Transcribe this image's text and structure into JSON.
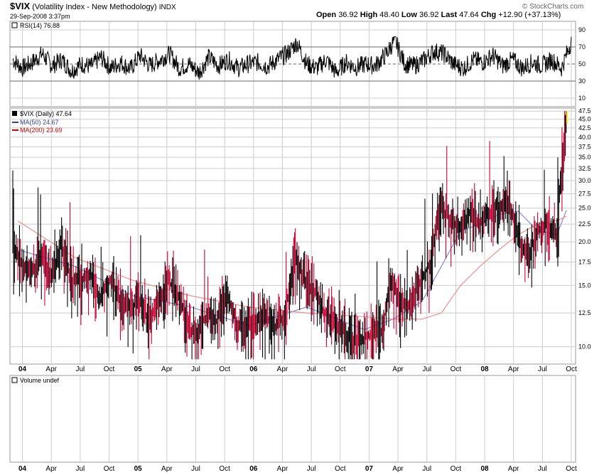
{
  "header": {
    "symbol": "$VIX",
    "name": "(Volatility Index - New Methodology)",
    "exchange": "INDX",
    "date": "29-Sep-2008 3:37pm",
    "open_label": "Open",
    "open": "36.92",
    "high_label": "High",
    "high": "48.40",
    "low_label": "Low",
    "low": "36.92",
    "last_label": "Last",
    "last": "47.64",
    "chg_label": "Chg",
    "chg": "+12.90 (+37.13%)",
    "brand": "© StockCharts.com"
  },
  "colors": {
    "price_up": "#000000",
    "price_down": "#cc0033",
    "ma50": "#8888cc",
    "ma200": "#ee9090",
    "rsi": "#000000",
    "last_bar": "#ffee00",
    "grid": "#cccccc"
  },
  "rsi_panel": {
    "label": "RSI(14) 76.88",
    "ticks": [
      "90",
      "70",
      "50",
      "30",
      "10"
    ]
  },
  "price_panel": {
    "legend_main": "$VIX (Daily) 47.64",
    "legend_ma50": "MA(50) 24.67",
    "legend_ma200": "MA(200) 23.69",
    "ticks": [
      "47.5",
      "45.0",
      "42.5",
      "40.0",
      "37.5",
      "35.0",
      "32.5",
      "30.0",
      "27.5",
      "25.0",
      "22.5",
      "20.0",
      "17.5",
      "15.0",
      "12.5",
      "10.0"
    ]
  },
  "volume_panel": {
    "label": "Volume undef"
  },
  "x_axis": {
    "labels": [
      "04",
      "Apr",
      "Jul",
      "Oct",
      "05",
      "Apr",
      "Jul",
      "Oct",
      "06",
      "Apr",
      "Jul",
      "Oct",
      "07",
      "Apr",
      "Jul",
      "Oct",
      "08",
      "Apr",
      "Jul",
      "Oct"
    ],
    "bold": [
      true,
      false,
      false,
      false,
      true,
      false,
      false,
      false,
      true,
      false,
      false,
      false,
      true,
      false,
      false,
      false,
      true,
      false,
      false,
      false
    ]
  },
  "chart_data": [
    {
      "type": "line",
      "panel": "rsi",
      "title": "RSI(14) 76.88",
      "ylim": [
        0,
        100
      ],
      "reference_lines": [
        30,
        50,
        70
      ],
      "series": [
        {
          "name": "RSI(14)",
          "x": [
            "2003-12",
            "2004-01",
            "2004-02",
            "2004-03",
            "2004-04",
            "2004-05",
            "2004-06",
            "2004-07",
            "2004-08",
            "2004-09",
            "2004-10",
            "2004-11",
            "2004-12",
            "2005-01",
            "2005-02",
            "2005-03",
            "2005-04",
            "2005-05",
            "2005-06",
            "2005-07",
            "2005-08",
            "2005-09",
            "2005-10",
            "2005-11",
            "2005-12",
            "2006-01",
            "2006-02",
            "2006-03",
            "2006-04",
            "2006-05",
            "2006-06",
            "2006-07",
            "2006-08",
            "2006-09",
            "2006-10",
            "2006-11",
            "2006-12",
            "2007-01",
            "2007-02",
            "2007-03",
            "2007-04",
            "2007-05",
            "2007-06",
            "2007-07",
            "2007-08",
            "2007-09",
            "2007-10",
            "2007-11",
            "2007-12",
            "2008-01",
            "2008-02",
            "2008-03",
            "2008-04",
            "2008-05",
            "2008-06",
            "2008-07",
            "2008-08",
            "2008-09"
          ],
          "values": [
            55,
            45,
            52,
            62,
            48,
            55,
            42,
            50,
            47,
            58,
            45,
            52,
            44,
            60,
            48,
            55,
            62,
            45,
            50,
            40,
            58,
            48,
            55,
            45,
            50,
            52,
            47,
            55,
            62,
            75,
            50,
            45,
            55,
            40,
            52,
            46,
            50,
            48,
            60,
            78,
            50,
            48,
            55,
            65,
            62,
            50,
            45,
            55,
            52,
            60,
            48,
            55,
            45,
            52,
            48,
            55,
            45,
            76.88
          ]
        }
      ]
    },
    {
      "type": "line",
      "panel": "price",
      "title": "$VIX (Daily) 47.64",
      "ylim": [
        9,
        48
      ],
      "yscale": "log",
      "series": [
        {
          "name": "$VIX (Daily)",
          "x": [
            "2003-12",
            "2004-01",
            "2004-02",
            "2004-03",
            "2004-04",
            "2004-05",
            "2004-06",
            "2004-07",
            "2004-08",
            "2004-09",
            "2004-10",
            "2004-11",
            "2004-12",
            "2005-01",
            "2005-02",
            "2005-03",
            "2005-04",
            "2005-05",
            "2005-06",
            "2005-07",
            "2005-08",
            "2005-09",
            "2005-10",
            "2005-11",
            "2005-12",
            "2006-01",
            "2006-02",
            "2006-03",
            "2006-04",
            "2006-05",
            "2006-06",
            "2006-07",
            "2006-08",
            "2006-09",
            "2006-10",
            "2006-11",
            "2006-12",
            "2007-01",
            "2007-02",
            "2007-03",
            "2007-04",
            "2007-05",
            "2007-06",
            "2007-07",
            "2007-08",
            "2007-09",
            "2007-10",
            "2007-11",
            "2007-12",
            "2008-01",
            "2008-02",
            "2008-03",
            "2008-04",
            "2008-05",
            "2008-06",
            "2008-07",
            "2008-08",
            "2008-09"
          ],
          "values": [
            19.5,
            17.0,
            16.5,
            18.0,
            16.0,
            19.5,
            15.5,
            15.5,
            16.0,
            13.8,
            15.5,
            13.5,
            13.0,
            13.5,
            12.0,
            13.5,
            15.5,
            14.0,
            11.5,
            10.7,
            12.5,
            11.8,
            14.5,
            11.5,
            11.5,
            12.0,
            12.2,
            11.5,
            12.0,
            18.0,
            15.5,
            14.5,
            12.5,
            11.8,
            11.0,
            10.5,
            10.5,
            10.8,
            11.0,
            15.5,
            13.0,
            13.5,
            15.5,
            17.5,
            25.0,
            23.0,
            22.0,
            24.0,
            22.5,
            24.5,
            25.5,
            26.0,
            20.5,
            18.0,
            21.5,
            22.5,
            20.5,
            47.64
          ]
        },
        {
          "name": "MA(50)",
          "x": [
            "2003-12",
            "2004-06",
            "2004-12",
            "2005-06",
            "2005-12",
            "2006-06",
            "2006-12",
            "2007-03",
            "2007-06",
            "2007-08",
            "2007-10",
            "2007-12",
            "2008-02",
            "2008-04",
            "2008-06",
            "2008-08",
            "2008-09"
          ],
          "values": [
            19.0,
            17.0,
            14.0,
            13.0,
            11.5,
            13.0,
            11.2,
            12.0,
            13.5,
            17.0,
            21.5,
            22.5,
            24.0,
            24.5,
            21.5,
            21.0,
            24.67
          ]
        },
        {
          "name": "MA(200)",
          "x": [
            "2003-12",
            "2004-06",
            "2004-12",
            "2005-06",
            "2005-12",
            "2006-06",
            "2006-12",
            "2007-03",
            "2007-06",
            "2007-08",
            "2007-10",
            "2007-12",
            "2008-02",
            "2008-04",
            "2008-06",
            "2008-08",
            "2008-09"
          ],
          "values": [
            23.0,
            18.0,
            15.5,
            14.0,
            13.0,
            12.5,
            12.2,
            12.0,
            12.0,
            12.5,
            15.0,
            17.0,
            19.0,
            21.0,
            22.5,
            23.0,
            23.69
          ]
        }
      ]
    }
  ]
}
